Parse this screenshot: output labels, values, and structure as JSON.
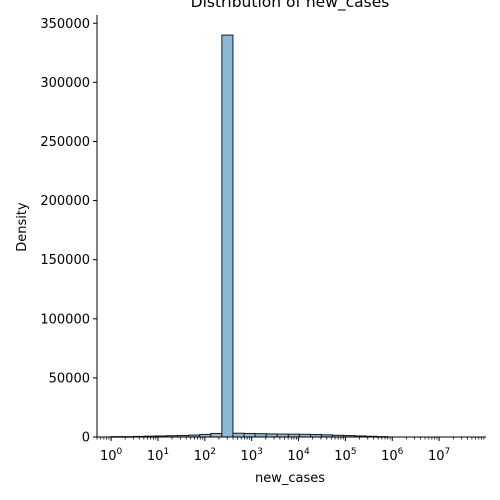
{
  "chart_data": {
    "type": "bar",
    "title": "Distribution of new_cases",
    "xlabel": "new_cases",
    "ylabel": "Density",
    "x_scale": "log",
    "xlim": [
      0.5,
      100000000
    ],
    "ylim": [
      0,
      357000
    ],
    "y_ticks": [
      0,
      50000,
      100000,
      150000,
      200000,
      250000,
      300000,
      350000
    ],
    "x_ticks": [
      {
        "base": "10",
        "exp": "0"
      },
      {
        "base": "10",
        "exp": "1"
      },
      {
        "base": "10",
        "exp": "2"
      },
      {
        "base": "10",
        "exp": "3"
      },
      {
        "base": "10",
        "exp": "4"
      },
      {
        "base": "10",
        "exp": "5"
      },
      {
        "base": "10",
        "exp": "6"
      },
      {
        "base": "10",
        "exp": "7"
      }
    ],
    "bin_edges": [
      1,
      1.72,
      2.97,
      5.12,
      8.82,
      15.2,
      26.2,
      45.1,
      77.7,
      134,
      231,
      398,
      686,
      1180,
      2040,
      3510,
      6050,
      10400,
      18000,
      31000,
      53400,
      92000,
      159000,
      273000,
      471000,
      812000
    ],
    "values": [
      300,
      300,
      500,
      700,
      900,
      1100,
      1300,
      1600,
      2200,
      3000,
      340000,
      3200,
      3000,
      2800,
      2600,
      2500,
      2400,
      2300,
      2100,
      1800,
      1500,
      1200,
      900,
      600,
      300
    ],
    "grid": false,
    "legend": "none",
    "bar_color": "#8bb8d8",
    "edge_color": "#1a1a1a"
  }
}
